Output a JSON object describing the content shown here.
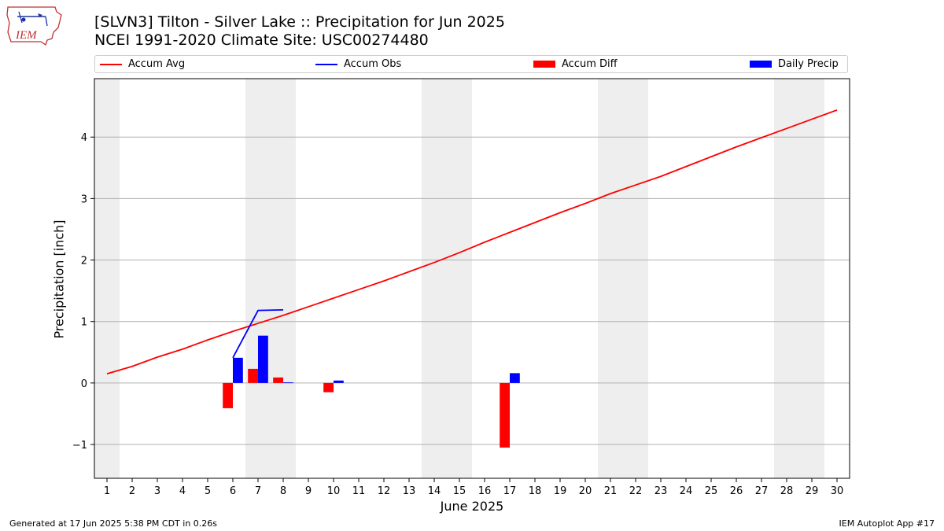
{
  "logo": {
    "text": "IEM",
    "icon": "iowa-state-outline-logo"
  },
  "footer": {
    "generated": "Generated at 17 Jun 2025 5:38 PM CDT in 0.26s",
    "app": "IEM Autoplot App #17"
  },
  "colors": {
    "avg": "#ff0000",
    "obs": "#0000ff",
    "diff": "#ff0000",
    "daily": "#0000ff",
    "weekend": "#eeeeee",
    "grid": "#b0b0b0"
  },
  "chart_data": {
    "type": "bar",
    "title": "[SLVN3] Tilton - Silver Lake :: Precipitation for Jun 2025",
    "subtitle": "NCEI 1991-2020 Climate Site: USC00274480",
    "xlabel": "June 2025",
    "ylabel": "Precipitation [inch]",
    "x": [
      1,
      2,
      3,
      4,
      5,
      6,
      7,
      8,
      9,
      10,
      11,
      12,
      13,
      14,
      15,
      16,
      17,
      18,
      19,
      20,
      21,
      22,
      23,
      24,
      25,
      26,
      27,
      28,
      29,
      30
    ],
    "xlim": [
      0.5,
      30.5
    ],
    "ylim": [
      -1.55,
      4.95
    ],
    "yticks": [
      -1,
      0,
      1,
      2,
      3,
      4
    ],
    "grid": "horizontal",
    "legend_position": "top",
    "weekend_days": [
      1,
      7,
      8,
      14,
      15,
      21,
      22,
      28,
      29
    ],
    "series": [
      {
        "name": "Accum Avg",
        "kind": "line",
        "color": "#ff0000",
        "x": [
          1,
          2,
          3,
          4,
          5,
          6,
          7,
          8,
          9,
          10,
          11,
          12,
          13,
          14,
          15,
          16,
          17,
          18,
          19,
          20,
          21,
          22,
          23,
          24,
          25,
          26,
          27,
          28,
          29,
          30
        ],
        "values": [
          0.15,
          0.27,
          0.42,
          0.55,
          0.7,
          0.84,
          0.97,
          1.1,
          1.24,
          1.38,
          1.52,
          1.66,
          1.81,
          1.96,
          2.12,
          2.29,
          2.45,
          2.61,
          2.77,
          2.92,
          3.08,
          3.22,
          3.36,
          3.52,
          3.68,
          3.84,
          3.99,
          4.14,
          4.29,
          4.44
        ]
      },
      {
        "name": "Accum Obs",
        "kind": "line",
        "color": "#0000ff",
        "x": [
          6,
          7,
          8
        ],
        "values": [
          0.41,
          1.18,
          1.19
        ]
      },
      {
        "name": "Accum Diff",
        "kind": "bar",
        "color": "#ff0000",
        "offset": "left",
        "x": [
          6,
          7,
          8,
          10,
          17
        ],
        "values": [
          -0.41,
          0.23,
          0.09,
          -0.15,
          -1.05
        ]
      },
      {
        "name": "Daily Precip",
        "kind": "bar",
        "color": "#0000ff",
        "offset": "right",
        "x": [
          6,
          7,
          8,
          10,
          17
        ],
        "values": [
          0.41,
          0.77,
          0.01,
          0.04,
          0.16
        ]
      }
    ]
  }
}
